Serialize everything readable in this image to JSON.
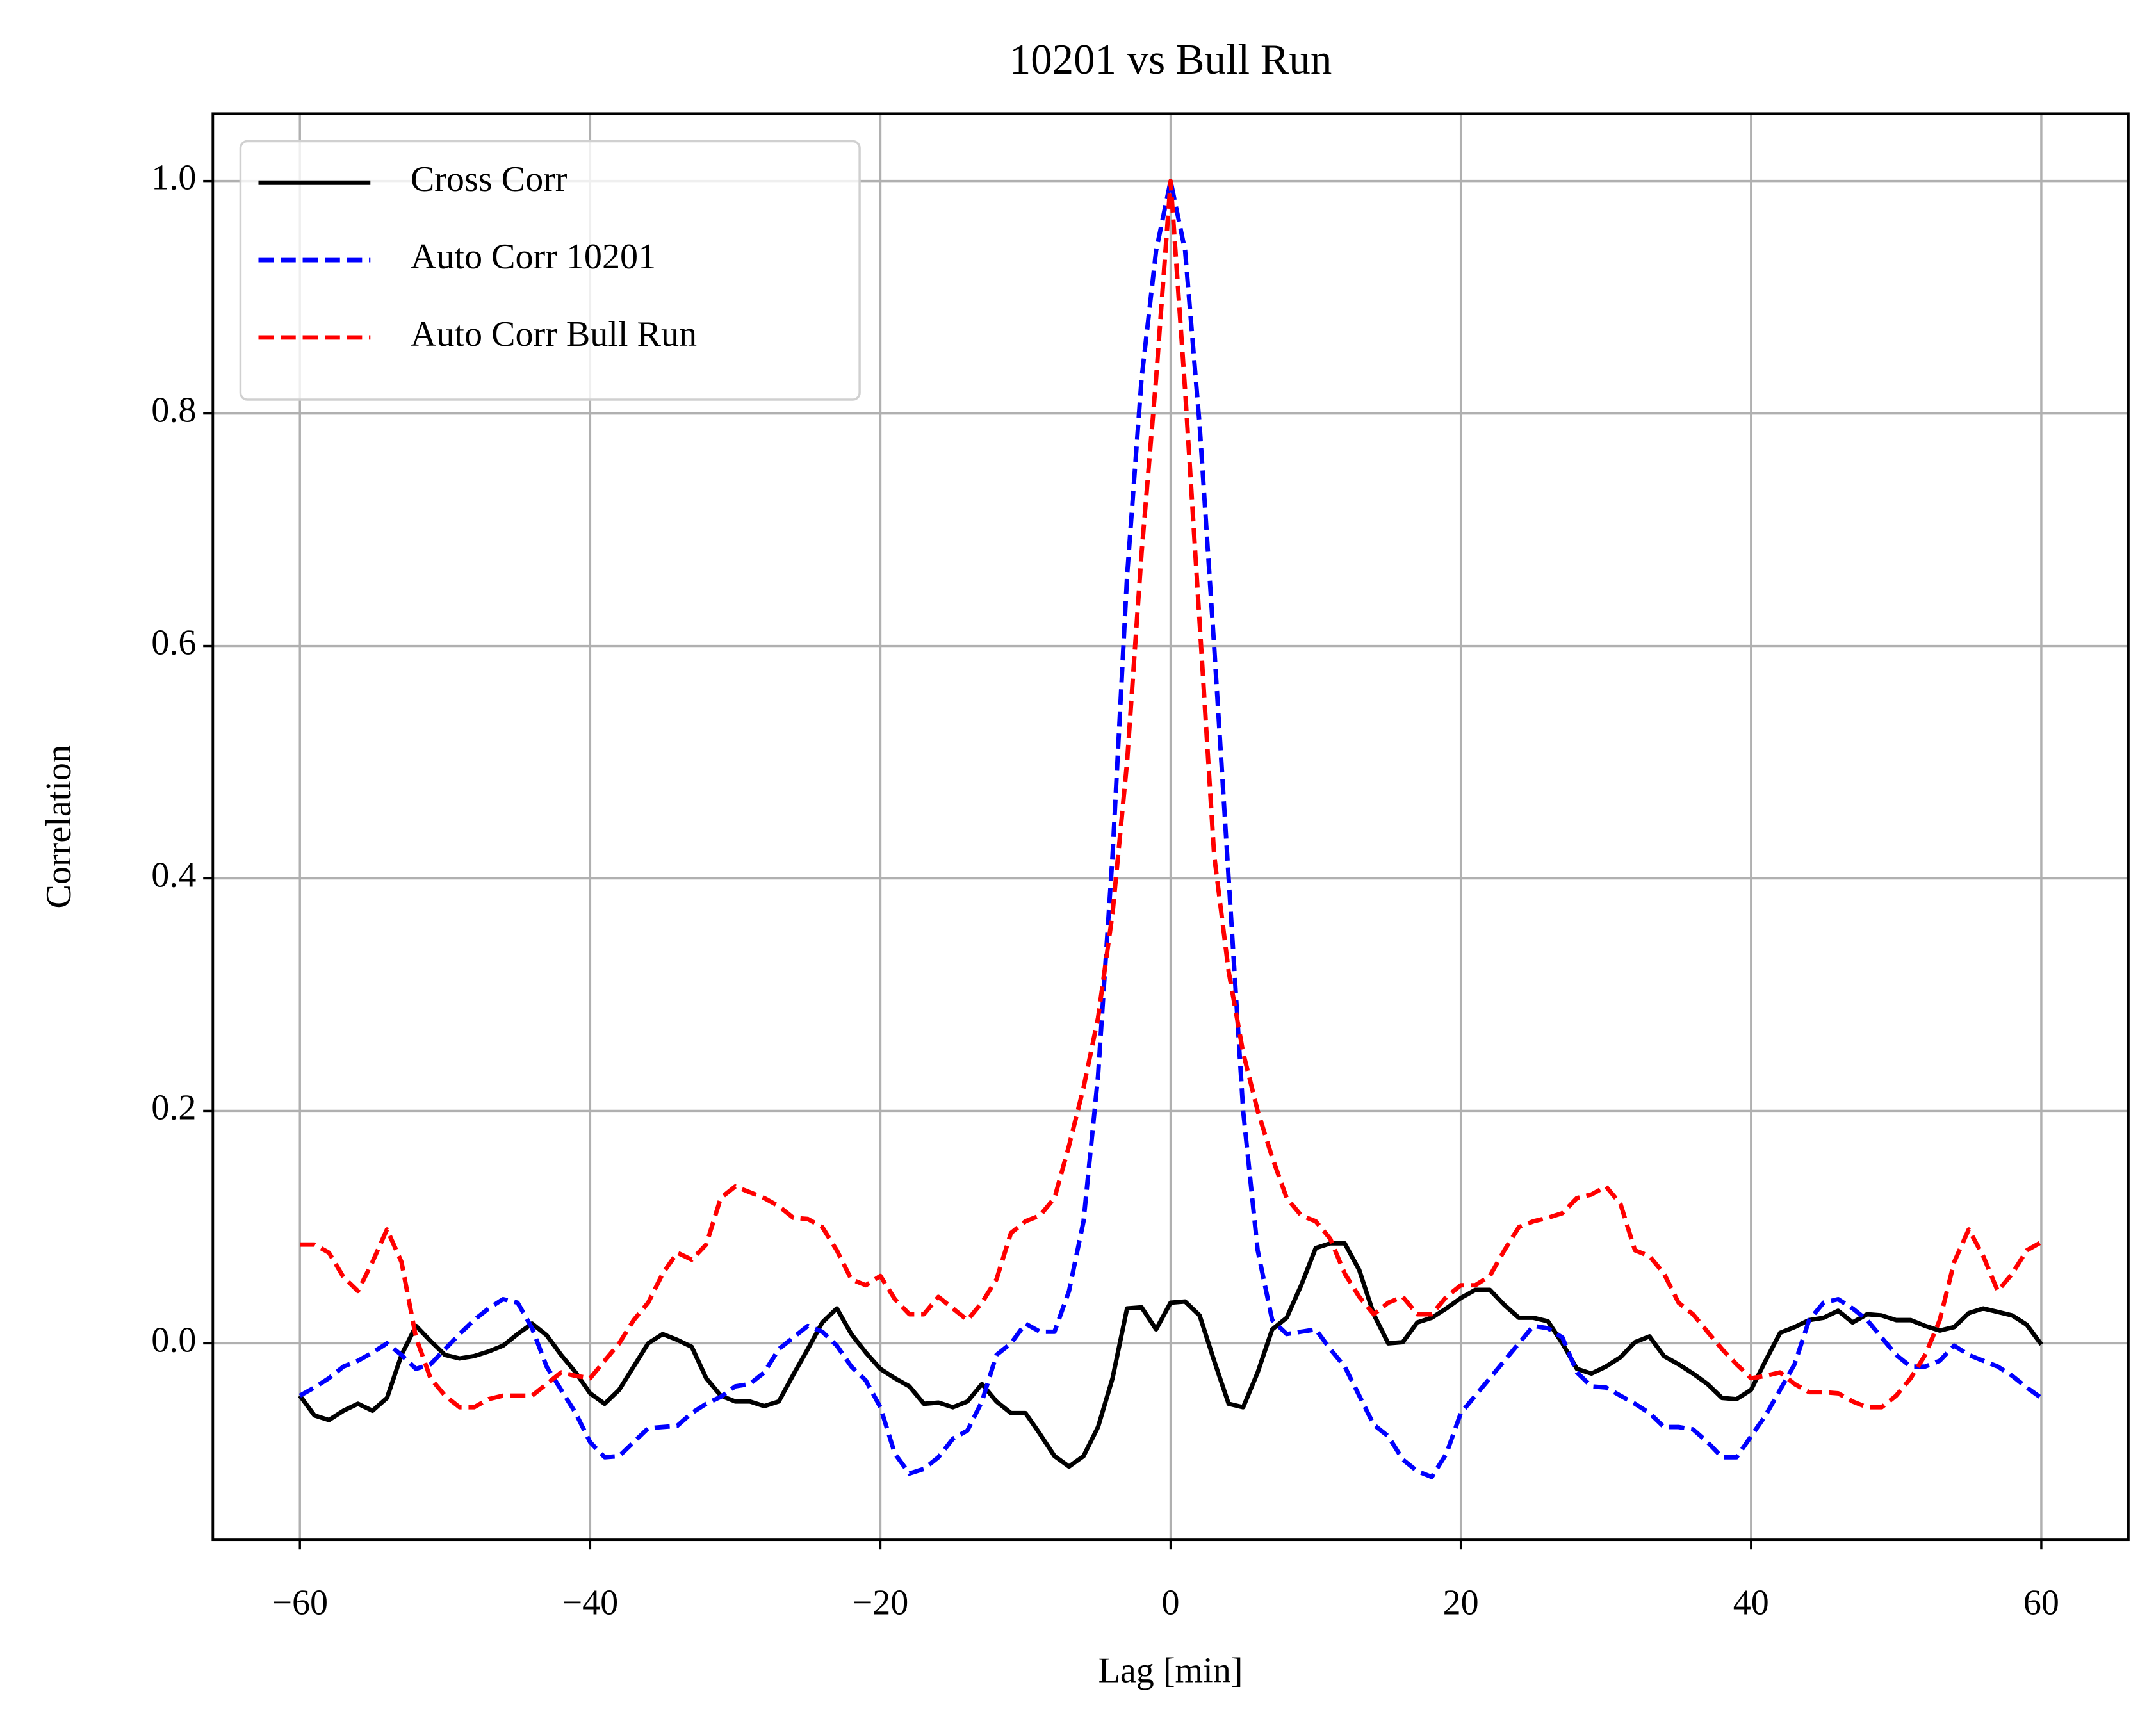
{
  "chart_data": {
    "type": "line",
    "title": "10201 vs Bull Run",
    "xlabel": "Lag [min]",
    "ylabel": "Correlation",
    "x": [
      -60,
      -59,
      -58,
      -57,
      -56,
      -55,
      -54,
      -53,
      -52,
      -51,
      -50,
      -49,
      -48,
      -47,
      -46,
      -45,
      -44,
      -43,
      -42,
      -41,
      -40,
      -39,
      -38,
      -37,
      -36,
      -35,
      -34,
      -33,
      -32,
      -31,
      -30,
      -29,
      -28,
      -27,
      -26,
      -25,
      -24,
      -23,
      -22,
      -21,
      -20,
      -19,
      -18,
      -17,
      -16,
      -15,
      -14,
      -13,
      -12,
      -11,
      -10,
      -9,
      -8,
      -7,
      -6,
      -5,
      -4,
      -3,
      -2,
      -1,
      0,
      1,
      2,
      3,
      4,
      5,
      6,
      7,
      8,
      9,
      10,
      11,
      12,
      13,
      14,
      15,
      16,
      17,
      18,
      19,
      20,
      21,
      22,
      23,
      24,
      25,
      26,
      27,
      28,
      29,
      30,
      31,
      32,
      33,
      34,
      35,
      36,
      37,
      38,
      39,
      40,
      41,
      42,
      43,
      44,
      45,
      46,
      47,
      48,
      49,
      50,
      51,
      52,
      53,
      54,
      55,
      56,
      57,
      58,
      59,
      60
    ],
    "series": [
      {
        "name": "Cross Corr",
        "color": "#000000",
        "linestyle": "solid",
        "values": [
          -0.045,
          -0.062,
          -0.066,
          -0.058,
          -0.052,
          -0.058,
          -0.047,
          -0.01,
          0.015,
          0.002,
          -0.01,
          -0.013,
          -0.011,
          -0.007,
          -0.002,
          0.008,
          0.017,
          0.007,
          -0.01,
          -0.025,
          -0.043,
          -0.052,
          -0.04,
          -0.02,
          0.0,
          0.008,
          0.003,
          -0.003,
          -0.03,
          -0.045,
          -0.05,
          -0.05,
          -0.054,
          -0.05,
          -0.027,
          -0.005,
          0.018,
          0.03,
          0.008,
          -0.008,
          -0.022,
          -0.03,
          -0.037,
          -0.052,
          -0.051,
          -0.055,
          -0.05,
          -0.035,
          -0.05,
          -0.06,
          -0.06,
          -0.078,
          -0.097,
          -0.106,
          -0.097,
          -0.072,
          -0.03,
          0.03,
          0.031,
          0.012,
          0.035,
          0.036,
          0.024,
          -0.015,
          -0.052,
          -0.055,
          -0.025,
          0.012,
          0.022,
          0.05,
          0.082,
          0.086,
          0.086,
          0.063,
          0.025,
          0.0,
          0.001,
          0.018,
          0.022,
          0.03,
          0.039,
          0.046,
          0.046,
          0.033,
          0.022,
          0.022,
          0.019,
          0.0,
          -0.022,
          -0.026,
          -0.02,
          -0.012,
          0.001,
          0.006,
          -0.011,
          -0.018,
          -0.026,
          -0.035,
          -0.047,
          -0.048,
          -0.04,
          -0.015,
          0.009,
          0.014,
          0.02,
          0.022,
          0.028,
          0.018,
          0.025,
          0.024,
          0.02,
          0.02,
          0.015,
          0.011,
          0.014,
          0.026,
          0.03,
          0.027,
          0.024,
          0.016,
          -0.001
        ]
      },
      {
        "name": "Auto Corr 10201",
        "color": "#0000ff",
        "linestyle": "dashed",
        "values": [
          -0.045,
          -0.038,
          -0.03,
          -0.02,
          -0.015,
          -0.008,
          0.0,
          -0.01,
          -0.022,
          -0.018,
          -0.005,
          0.008,
          0.02,
          0.03,
          0.038,
          0.035,
          0.013,
          -0.02,
          -0.04,
          -0.06,
          -0.085,
          -0.098,
          -0.097,
          -0.085,
          -0.073,
          -0.072,
          -0.071,
          -0.06,
          -0.052,
          -0.046,
          -0.037,
          -0.035,
          -0.025,
          -0.005,
          0.005,
          0.015,
          0.01,
          -0.002,
          -0.02,
          -0.032,
          -0.055,
          -0.095,
          -0.112,
          -0.108,
          -0.098,
          -0.082,
          -0.075,
          -0.05,
          -0.01,
          0.0,
          0.017,
          0.01,
          0.01,
          0.045,
          0.105,
          0.23,
          0.42,
          0.66,
          0.83,
          0.94,
          1.0,
          0.94,
          0.79,
          0.6,
          0.4,
          0.2,
          0.08,
          0.02,
          0.008,
          0.01,
          0.012,
          -0.005,
          -0.02,
          -0.045,
          -0.07,
          -0.08,
          -0.1,
          -0.11,
          -0.115,
          -0.095,
          -0.06,
          -0.045,
          -0.03,
          -0.015,
          0.0,
          0.015,
          0.013,
          0.005,
          -0.025,
          -0.037,
          -0.038,
          -0.045,
          -0.052,
          -0.06,
          -0.072,
          -0.072,
          -0.074,
          -0.085,
          -0.098,
          -0.098,
          -0.08,
          -0.062,
          -0.04,
          -0.018,
          0.02,
          0.035,
          0.038,
          0.03,
          0.02,
          0.005,
          -0.01,
          -0.02,
          -0.02,
          -0.015,
          -0.002,
          -0.01,
          -0.015,
          -0.02,
          -0.028,
          -0.038,
          -0.047
        ]
      },
      {
        "name": "Auto Corr Bull Run",
        "color": "#ff0000",
        "linestyle": "dashed",
        "values": [
          0.085,
          0.085,
          0.078,
          0.057,
          0.045,
          0.07,
          0.098,
          0.07,
          0.005,
          -0.03,
          -0.045,
          -0.055,
          -0.055,
          -0.048,
          -0.045,
          -0.045,
          -0.045,
          -0.035,
          -0.025,
          -0.028,
          -0.03,
          -0.015,
          0.0,
          0.02,
          0.035,
          0.06,
          0.078,
          0.072,
          0.085,
          0.125,
          0.135,
          0.13,
          0.125,
          0.118,
          0.108,
          0.107,
          0.1,
          0.08,
          0.055,
          0.05,
          0.058,
          0.038,
          0.025,
          0.025,
          0.04,
          0.03,
          0.02,
          0.035,
          0.055,
          0.095,
          0.105,
          0.11,
          0.125,
          0.17,
          0.22,
          0.28,
          0.37,
          0.5,
          0.68,
          0.83,
          1.0,
          0.82,
          0.62,
          0.42,
          0.32,
          0.25,
          0.2,
          0.16,
          0.125,
          0.11,
          0.105,
          0.09,
          0.06,
          0.04,
          0.025,
          0.035,
          0.04,
          0.025,
          0.025,
          0.04,
          0.05,
          0.05,
          0.058,
          0.08,
          0.1,
          0.105,
          0.108,
          0.112,
          0.125,
          0.128,
          0.135,
          0.12,
          0.08,
          0.075,
          0.06,
          0.035,
          0.025,
          0.01,
          -0.005,
          -0.018,
          -0.03,
          -0.028,
          -0.025,
          -0.035,
          -0.042,
          -0.042,
          -0.043,
          -0.05,
          -0.055,
          -0.055,
          -0.045,
          -0.03,
          -0.01,
          0.02,
          0.07,
          0.098,
          0.075,
          0.045,
          0.06,
          0.08,
          0.087
        ]
      }
    ],
    "xlim": [
      -66,
      66
    ],
    "ylim": [
      -0.169,
      1.058
    ],
    "xticks": [
      {
        "value": -60,
        "label": "−60"
      },
      {
        "value": -40,
        "label": "−40"
      },
      {
        "value": -20,
        "label": "−20"
      },
      0,
      20,
      40,
      60
    ],
    "yticks": [
      {
        "value": 0,
        "label": "0.0"
      },
      0.2,
      0.4,
      0.6,
      0.8,
      {
        "value": 1,
        "label": "1.0"
      }
    ],
    "grid": true,
    "legend": "upper left"
  }
}
